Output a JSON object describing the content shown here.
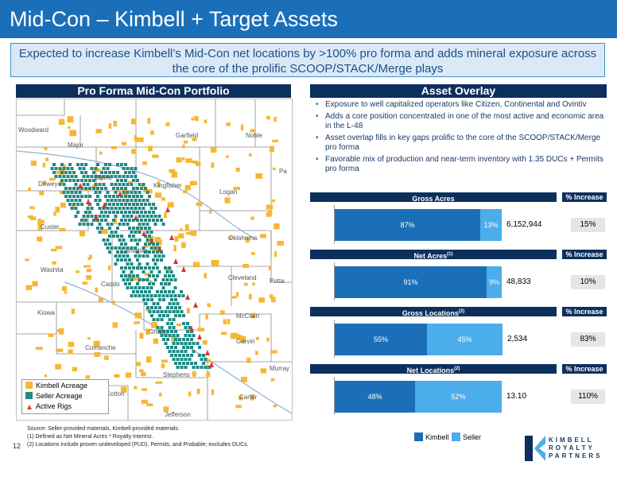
{
  "title": "Mid-Con – Kimbell + Target Assets",
  "callout": "Expected to increase Kimbell’s Mid-Con net locations by >100% pro forma and adds mineral exposure across the core of the prolific SCOOP/STACK/Merge plays",
  "left_header": "Pro Forma Mid-Con Portfolio",
  "right_header": "Asset Overlay",
  "map": {
    "counties": [
      "Woodward",
      "Major",
      "Garfield",
      "Noble",
      "Dewey",
      "Blaine",
      "Kingfisher",
      "Logan",
      "Pa",
      "Custer",
      "Canadian",
      "Oklahoma",
      "Washita",
      "Caddo",
      "Cleveland",
      "Potta",
      "Kiowa",
      "McClain",
      "Grady",
      "Garvin",
      "Comanche",
      "Stephens",
      "Murray",
      "Cotton",
      "Carter",
      "Jefferson"
    ],
    "legend": [
      "Kimbell Acreage",
      "Seller Acreage",
      "Active Rigs"
    ],
    "colors": {
      "kimbell": "#f7b733",
      "seller": "#1f8a85",
      "rig": "#d9342b"
    }
  },
  "bullets": [
    "Exposure to well capitalized operators like Citizen, Continental and Ovintiv",
    "Adds a core position concentrated in one of the most active and economic area in the L-48",
    "Asset overlap fills in key gaps prolific to the core of the SCOOP/STACK/Merge pro forma",
    "Favorable mix of production and near-term inventory with 1.35 DUCs + Permits pro forma"
  ],
  "increase_label": "% Increase",
  "metrics": [
    {
      "label": "Gross Acres",
      "sup": "",
      "kimbell_label": "87%",
      "seller_label": "13%",
      "kimbell": 87,
      "seller": 13,
      "total": "6,152,944",
      "increase": "15%"
    },
    {
      "label": "Net Acres",
      "sup": "(1)",
      "kimbell_label": "91%",
      "seller_label": "9%",
      "kimbell": 91,
      "seller": 9,
      "total": "48,833",
      "increase": "10%"
    },
    {
      "label": "Gross Locations",
      "sup": "(2)",
      "kimbell_label": "55%",
      "seller_label": "45%",
      "kimbell": 55,
      "seller": 45,
      "total": "2,534",
      "increase": "83%"
    },
    {
      "label": "Net Locations",
      "sup": "(2)",
      "kimbell_label": "48%",
      "seller_label": "52%",
      "kimbell": 48,
      "seller": 52,
      "total": "13.10",
      "increase": "110%"
    }
  ],
  "bar_colors": {
    "kimbell": "#1b6fb8",
    "seller": "#4badea"
  },
  "bar_legend": [
    "Kimbell",
    "Seller"
  ],
  "footnotes": [
    "Source: Seller-provided materials, Kimbell-provided materials.",
    "(1)  Defined as Net Mineral Acres * Royalty Interest.",
    "(2)  Locations include proven undeveloped (PUD), Permits, and Probable; excludes DUCs."
  ],
  "page_number": "12",
  "logo_text": [
    "KIMBELL",
    "ROYALTY",
    "PARTNERS"
  ]
}
